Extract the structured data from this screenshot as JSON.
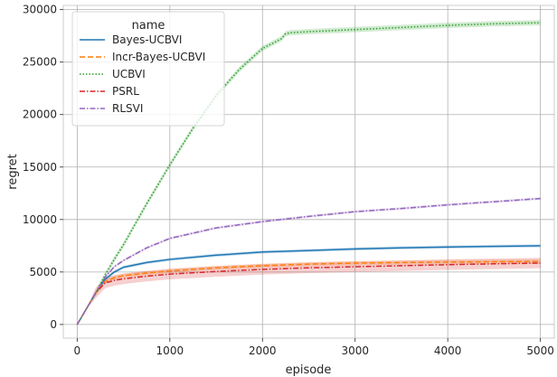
{
  "chart_data": {
    "type": "line",
    "xlabel": "episode",
    "ylabel": "regret",
    "xlim": [
      -150,
      5150
    ],
    "ylim": [
      -1300,
      30400
    ],
    "xticks": [
      0,
      1000,
      2000,
      3000,
      4000,
      5000
    ],
    "yticks": [
      0,
      5000,
      10000,
      15000,
      20000,
      25000,
      30000
    ],
    "grid": true,
    "legend": {
      "title": "name",
      "placement": "top-left"
    },
    "series": [
      {
        "name": "Bayes-UCBVI",
        "color": "#1f77b4",
        "linestyle": "solid",
        "x": [
          0,
          100,
          200,
          300,
          400,
          500,
          750,
          1000,
          1500,
          2000,
          2500,
          3000,
          3500,
          4000,
          4500,
          5000
        ],
        "y": [
          0,
          1500,
          3000,
          4300,
          5000,
          5450,
          5900,
          6200,
          6600,
          6900,
          7050,
          7200,
          7300,
          7380,
          7440,
          7500
        ],
        "band": 150
      },
      {
        "name": "Incr-Bayes-UCBVI",
        "color": "#ff7f0e",
        "linestyle": "dashed",
        "x": [
          0,
          100,
          200,
          300,
          400,
          500,
          750,
          1000,
          1500,
          2000,
          2500,
          3000,
          3500,
          4000,
          4500,
          5000
        ],
        "y": [
          0,
          1500,
          3000,
          4100,
          4450,
          4650,
          4900,
          5100,
          5400,
          5600,
          5750,
          5850,
          5900,
          5950,
          5980,
          6000
        ],
        "band": 200
      },
      {
        "name": "UCBVI",
        "color": "#2ca02c",
        "linestyle": "dotted",
        "x": [
          0,
          100,
          200,
          300,
          400,
          500,
          750,
          1000,
          1250,
          1500,
          1750,
          2000,
          2200,
          2250,
          2300,
          2500,
          3000,
          3500,
          4000,
          4500,
          5000
        ],
        "y": [
          0,
          1500,
          3000,
          4700,
          6200,
          7600,
          11500,
          15200,
          18700,
          21800,
          24300,
          26300,
          27200,
          27700,
          27800,
          27900,
          28100,
          28300,
          28500,
          28650,
          28750
        ],
        "band": 250
      },
      {
        "name": "PSRL",
        "color": "#d62728",
        "linestyle": "dashdot",
        "x": [
          0,
          100,
          200,
          300,
          400,
          500,
          750,
          1000,
          1500,
          2000,
          2500,
          3000,
          3500,
          4000,
          4500,
          5000
        ],
        "y": [
          0,
          1500,
          3000,
          3950,
          4200,
          4350,
          4600,
          4800,
          5050,
          5250,
          5400,
          5500,
          5600,
          5700,
          5780,
          5850
        ],
        "band": 500
      },
      {
        "name": "RLSVI",
        "color": "#9467bd",
        "linestyle": "dashdot",
        "x": [
          0,
          100,
          200,
          300,
          400,
          500,
          750,
          1000,
          1500,
          2000,
          2500,
          3000,
          3500,
          4000,
          4500,
          5000
        ],
        "y": [
          0,
          1500,
          3000,
          4500,
          5500,
          6100,
          7300,
          8200,
          9200,
          9800,
          10300,
          10750,
          11050,
          11400,
          11700,
          12000
        ],
        "band": 120
      }
    ]
  }
}
